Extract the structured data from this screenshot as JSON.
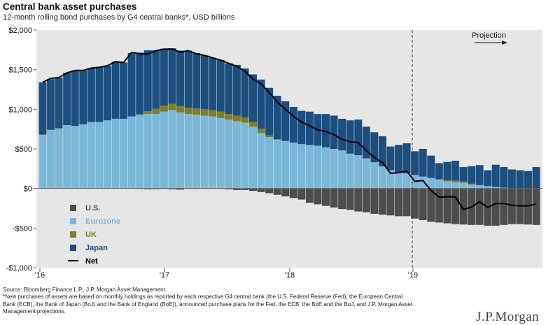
{
  "header": {
    "title": "Central bank asset purchases",
    "subtitle": "12-month rolling bond purchases by G4 central banks*, USD billions"
  },
  "chart_data": {
    "type": "bar",
    "subtype": "stacked bar with net line",
    "y_tick_labels": [
      "$2,000",
      "$1,500",
      "$1,000",
      "$500",
      "$0",
      "-$500",
      "-$1,000"
    ],
    "y_ticks": [
      2000,
      1500,
      1000,
      500,
      0,
      -500,
      -1000
    ],
    "ylim": [
      -1000,
      2000
    ],
    "x_tick_labels": [
      "'16",
      "'17",
      "'18",
      "'19"
    ],
    "projection_label": "Projection",
    "projection_starts_at": "'19",
    "legend_position": "lower-left",
    "colors": {
      "us": "#4d4d4d",
      "eurozone": "#7ab8d8",
      "uk": "#7e7d2a",
      "japan": "#1b4f7f",
      "net": "#000000",
      "background": "#e6e6e6"
    },
    "series": [
      {
        "name": "U.S.",
        "key": "us",
        "values": [
          0,
          0,
          0,
          0,
          0,
          0,
          0,
          0,
          0,
          0,
          0,
          0,
          -5,
          -10,
          -8,
          -5,
          -10,
          -15,
          -5,
          -5,
          -5,
          -5,
          -5,
          -10,
          -20,
          -20,
          -30,
          -45,
          -60,
          -80,
          -100,
          -120,
          -140,
          -180,
          -200,
          -220,
          -240,
          -260,
          -270,
          -290,
          -300,
          -320,
          -330,
          -340,
          -350,
          -350,
          -380,
          -400,
          -420,
          -430,
          -440,
          -450,
          -455,
          -460,
          -460,
          -470,
          -470,
          -460,
          -450,
          -450,
          -455,
          -460
        ]
      },
      {
        "name": "Eurozone",
        "key": "eurozone",
        "values": [
          680,
          740,
          760,
          800,
          790,
          810,
          840,
          840,
          860,
          880,
          880,
          910,
          930,
          940,
          940,
          970,
          990,
          960,
          940,
          930,
          920,
          910,
          890,
          870,
          850,
          830,
          780,
          700,
          650,
          620,
          600,
          580,
          560,
          550,
          540,
          520,
          500,
          480,
          440,
          420,
          380,
          330,
          280,
          230,
          200,
          190,
          170,
          150,
          130,
          110,
          90,
          80,
          70,
          50,
          40,
          30,
          20,
          10,
          0,
          0,
          0,
          0
        ]
      },
      {
        "name": "UK",
        "key": "uk",
        "values": [
          0,
          0,
          0,
          0,
          0,
          0,
          0,
          0,
          0,
          0,
          0,
          0,
          5,
          35,
          65,
          75,
          80,
          80,
          80,
          80,
          80,
          80,
          80,
          70,
          70,
          65,
          60,
          55,
          20,
          0,
          0,
          0,
          0,
          0,
          0,
          0,
          0,
          0,
          0,
          0,
          0,
          0,
          0,
          0,
          0,
          0,
          0,
          0,
          5,
          10,
          15,
          20,
          20,
          10,
          5,
          0,
          0,
          0,
          0,
          0,
          0,
          0
        ]
      },
      {
        "name": "Japan",
        "key": "japan",
        "values": [
          660,
          640,
          640,
          660,
          700,
          680,
          680,
          690,
          690,
          720,
          710,
          800,
          780,
          770,
          740,
          720,
          700,
          700,
          720,
          700,
          680,
          660,
          650,
          640,
          640,
          620,
          600,
          620,
          600,
          550,
          500,
          450,
          420,
          420,
          400,
          420,
          420,
          400,
          420,
          450,
          400,
          380,
          380,
          300,
          350,
          380,
          300,
          350,
          280,
          200,
          230,
          250,
          180,
          220,
          250,
          200,
          280,
          260,
          240,
          230,
          220,
          270
        ]
      },
      {
        "name": "Net",
        "key": "net",
        "type": "line",
        "values": [
          1340,
          1390,
          1400,
          1460,
          1490,
          1490,
          1520,
          1530,
          1550,
          1600,
          1590,
          1720,
          1700,
          1700,
          1740,
          1760,
          1760,
          1720,
          1740,
          1700,
          1680,
          1650,
          1620,
          1580,
          1540,
          1480,
          1380,
          1320,
          1210,
          1090,
          1000,
          910,
          840,
          790,
          740,
          720,
          680,
          620,
          590,
          580,
          480,
          390,
          330,
          190,
          200,
          220,
          90,
          100,
          -25,
          -110,
          -105,
          -105,
          -265,
          -235,
          -165,
          -240,
          -190,
          -190,
          -210,
          -220,
          -220,
          -195
        ]
      }
    ]
  },
  "footnote": {
    "lines": [
      "Source: Bloomberg Finance L.P., J.P. Morgan Asset Management.",
      "*New purchases of assets are based on monthly holdings as reported by each respective G4 central bank (the U.S. Federal Reserve (Fed), the European Central",
      "Bank (ECB), the Bank of Japan (BoJ) and the Bank of England (BoE)), announced purchase plans for the Fed, the ECB, the BoE and the BoJ, and J.P. Morgan Asset",
      "Management projections."
    ]
  },
  "logo": {
    "text": "J.P.Morgan"
  }
}
